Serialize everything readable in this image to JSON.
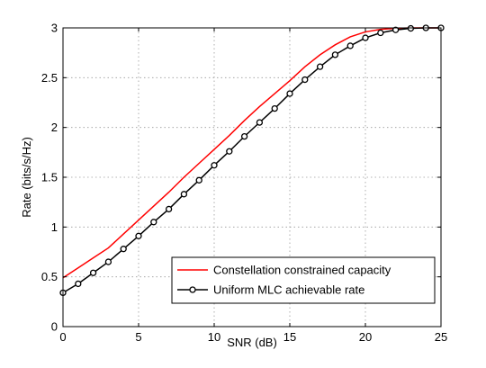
{
  "chart_data": {
    "type": "line",
    "title": "",
    "xlabel": "SNR (dB)",
    "ylabel": "Rate (bits/s/Hz)",
    "xlim": [
      0,
      25
    ],
    "ylim": [
      0,
      3
    ],
    "x_ticks": [
      0,
      5,
      10,
      15,
      20,
      25
    ],
    "y_ticks": [
      0,
      0.5,
      1,
      1.5,
      2,
      2.5,
      3
    ],
    "x_tick_labels": [
      "0",
      "5",
      "10",
      "15",
      "20",
      "25"
    ],
    "y_tick_labels": [
      "0",
      "0.5",
      "1",
      "1.5",
      "2",
      "2.5",
      "3"
    ],
    "grid": true,
    "legend_position": "bottom-right",
    "series": [
      {
        "name": "Constellation constrained capacity",
        "color": "#ff0000",
        "marker": "none",
        "x": [
          0,
          1,
          2,
          3,
          4,
          5,
          6,
          7,
          8,
          9,
          10,
          11,
          12,
          13,
          14,
          15,
          16,
          17,
          18,
          19,
          20,
          21,
          22,
          23,
          24,
          25
        ],
        "y": [
          0.49,
          0.59,
          0.69,
          0.79,
          0.93,
          1.07,
          1.21,
          1.35,
          1.5,
          1.64,
          1.78,
          1.92,
          2.07,
          2.21,
          2.34,
          2.47,
          2.61,
          2.73,
          2.83,
          2.91,
          2.96,
          2.985,
          2.995,
          3.0,
          3.0,
          3.0
        ]
      },
      {
        "name": "Uniform MLC achievable rate",
        "color": "#000000",
        "marker": "circle",
        "x": [
          0,
          1,
          2,
          3,
          4,
          5,
          6,
          7,
          8,
          9,
          10,
          11,
          12,
          13,
          14,
          15,
          16,
          17,
          18,
          19,
          20,
          21,
          22,
          23,
          24,
          25
        ],
        "y": [
          0.34,
          0.43,
          0.54,
          0.65,
          0.78,
          0.91,
          1.05,
          1.18,
          1.33,
          1.47,
          1.62,
          1.76,
          1.91,
          2.05,
          2.19,
          2.34,
          2.48,
          2.61,
          2.73,
          2.82,
          2.9,
          2.95,
          2.98,
          2.995,
          3.0,
          3.0
        ]
      }
    ]
  }
}
